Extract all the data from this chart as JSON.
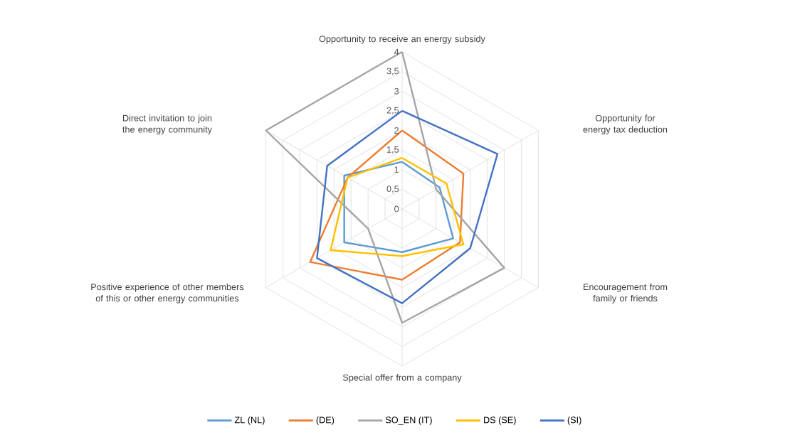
{
  "chart_data": {
    "type": "radar",
    "categories": [
      "Opportunity to receive an energy subsidy",
      "Opportunity for energy tax deduction",
      "Encouragement from family or friends",
      "Special offer from a company",
      "Positive experience of other members of this or other energy communities",
      "Direct invitation to join the energy community"
    ],
    "series": [
      {
        "name": "ZL (NL)",
        "color": "#5b9bd5",
        "values": [
          1.2,
          1.1,
          1.5,
          1.1,
          1.7,
          1.7
        ]
      },
      {
        "name": "(DE)",
        "color": "#ed7d31",
        "values": [
          2.0,
          1.8,
          1.7,
          1.8,
          2.7,
          1.6
        ]
      },
      {
        "name": "SO_EN (IT)",
        "color": "#a5a5a5",
        "values": [
          4.0,
          1.0,
          3.0,
          2.9,
          1.0,
          4.0
        ]
      },
      {
        "name": "DS (SE)",
        "color": "#ffc000",
        "values": [
          1.3,
          1.3,
          1.8,
          1.2,
          2.1,
          1.6
        ]
      },
      {
        "name": "(SI)",
        "color": "#4472c4",
        "values": [
          2.5,
          2.8,
          2.0,
          2.4,
          2.5,
          2.2
        ]
      }
    ],
    "ylim": [
      0,
      4
    ],
    "yticks": [
      0,
      {
        "value": 0.5,
        "label": "0,5"
      },
      1,
      {
        "value": 1.5,
        "label": "1,5"
      },
      2,
      {
        "value": 2.5,
        "label": "2,5"
      },
      3,
      {
        "value": 3.5,
        "label": "3,5"
      },
      4
    ],
    "grid": true,
    "legend": "bottom"
  }
}
